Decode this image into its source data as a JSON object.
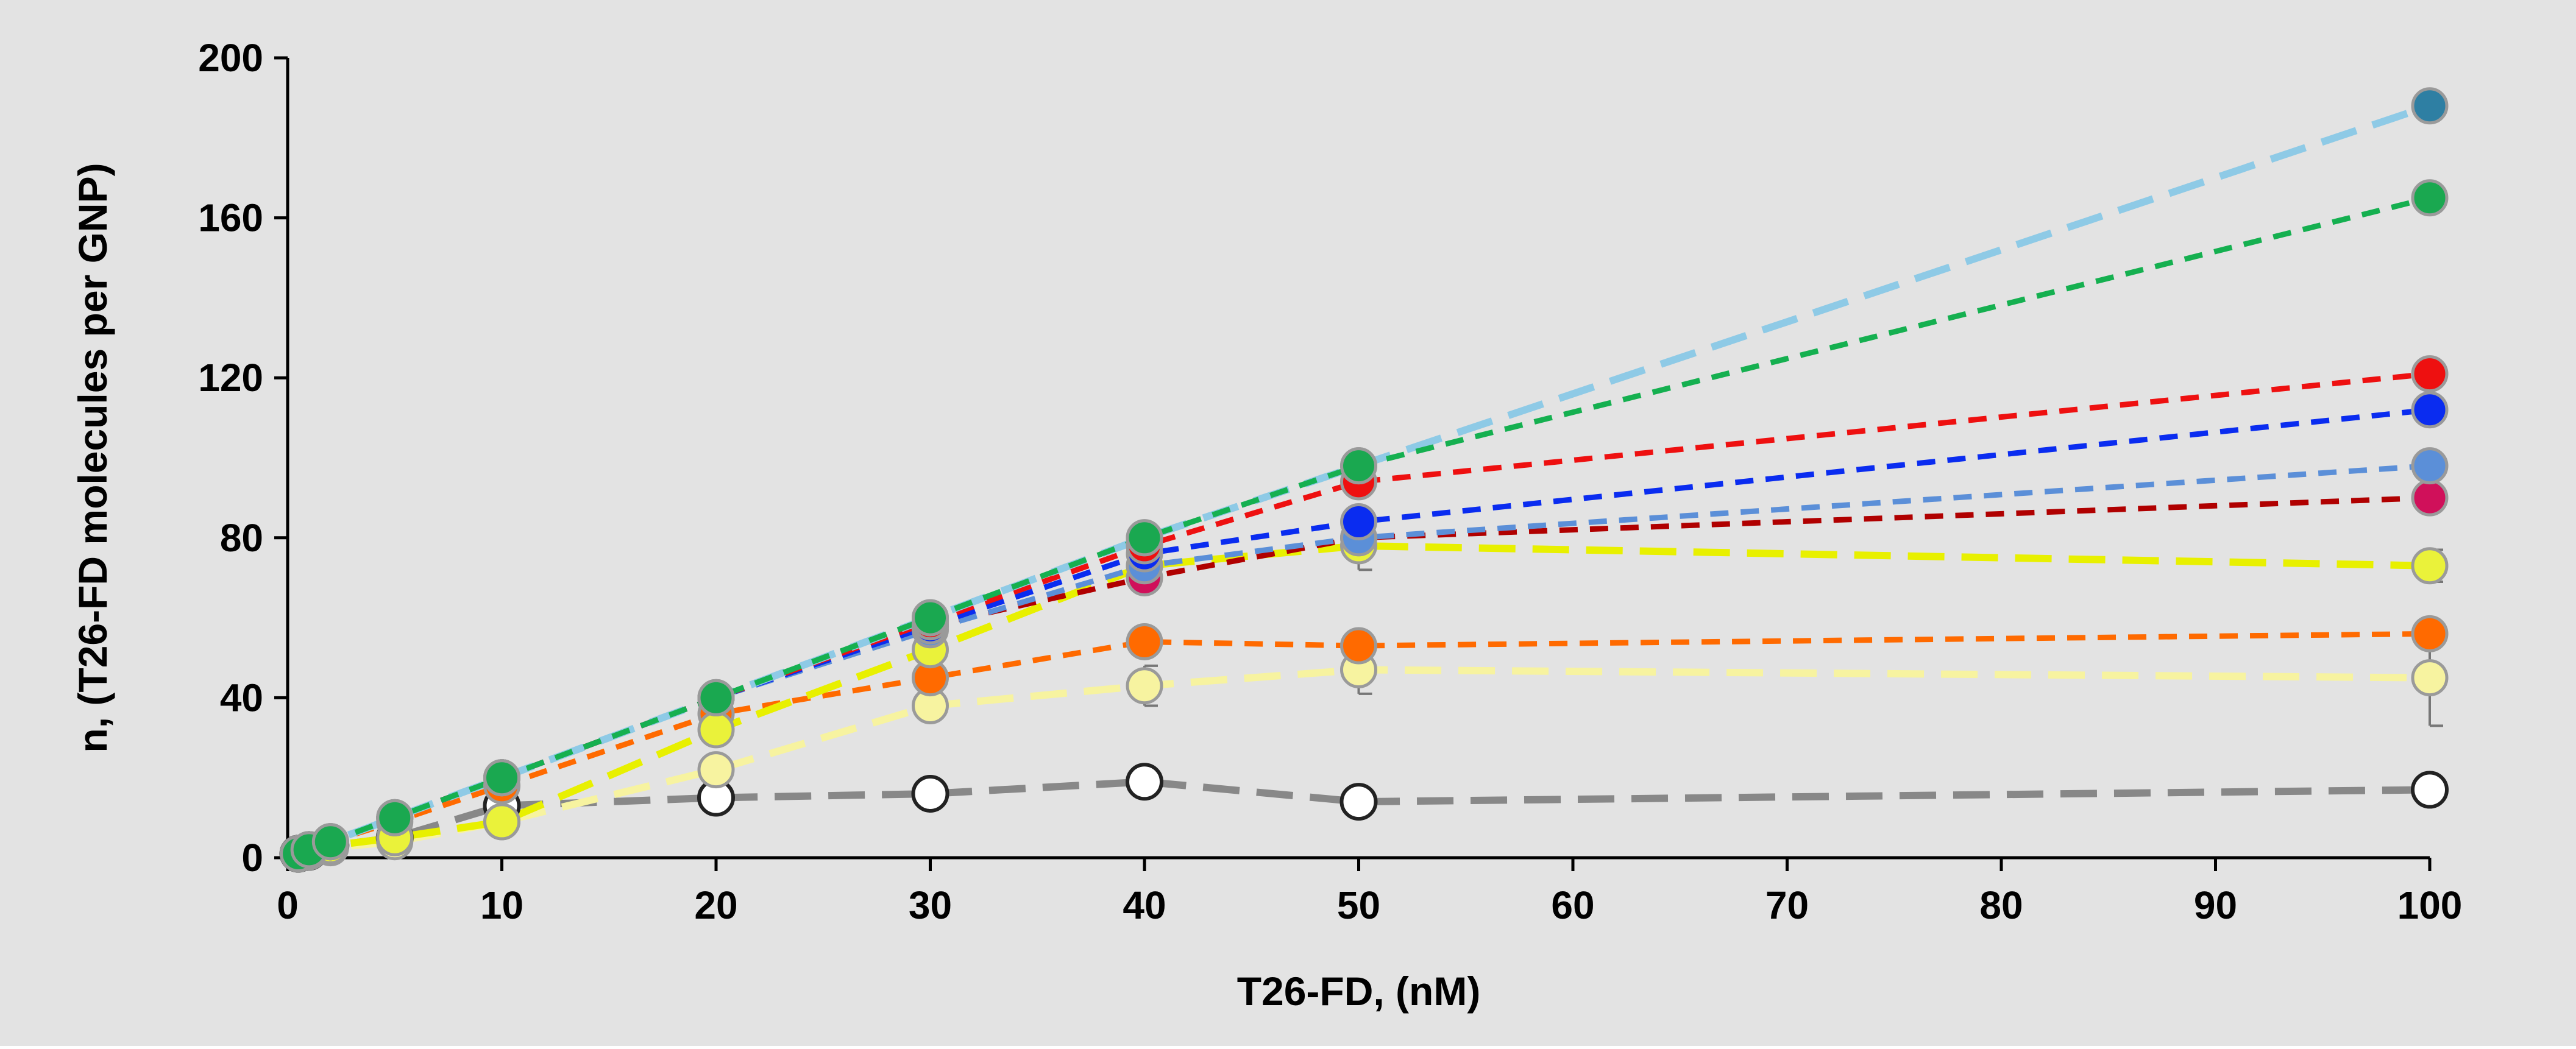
{
  "chart_data": {
    "type": "line",
    "title": "",
    "xlabel": "T26-FD, (nM)",
    "ylabel": "n,  (T26-FD molecules  per  GNP)",
    "xlim": [
      0,
      100
    ],
    "ylim": [
      0,
      200
    ],
    "x_ticks": [
      "0",
      "10",
      "20",
      "30",
      "40",
      "50",
      "60",
      "70",
      "80",
      "90",
      "100"
    ],
    "y_ticks": [
      "0",
      "40",
      "80",
      "120",
      "160",
      "200"
    ],
    "x_tick_values": [
      0,
      10,
      20,
      30,
      40,
      50,
      60,
      70,
      80,
      90,
      100
    ],
    "y_tick_values": [
      0,
      40,
      80,
      120,
      160,
      200
    ],
    "background": "#e3e3e3",
    "series": [
      {
        "name": "series-white",
        "line_color": "#888888",
        "marker_color": "#ffffff",
        "marker_edge": "#222222",
        "dash": "long",
        "points": [
          [
            0.5,
            1
          ],
          [
            1,
            1.5
          ],
          [
            2,
            3
          ],
          [
            5,
            5
          ],
          [
            10,
            13
          ],
          [
            20,
            15
          ],
          [
            30,
            16
          ],
          [
            40,
            19
          ],
          [
            50,
            14
          ],
          [
            100,
            17
          ]
        ]
      },
      {
        "name": "series-pale-yellow",
        "line_color": "#f7f3a0",
        "marker_color": "#f7f3a0",
        "marker_edge": "#9a9a9a",
        "dash": "long",
        "points": [
          [
            0.5,
            1
          ],
          [
            1,
            1.5
          ],
          [
            2,
            2.5
          ],
          [
            5,
            4
          ],
          [
            10,
            9
          ],
          [
            20,
            22
          ],
          [
            30,
            38
          ],
          [
            40,
            43
          ],
          [
            50,
            47
          ],
          [
            100,
            45
          ]
        ],
        "errors": [
          [
            40,
            5
          ],
          [
            50,
            6
          ],
          [
            100,
            12
          ]
        ]
      },
      {
        "name": "series-orange",
        "line_color": "#ff6a00",
        "marker_color": "#ff6a00",
        "marker_edge": "#9a9a9a",
        "dash": "short",
        "points": [
          [
            0.5,
            1
          ],
          [
            1,
            2
          ],
          [
            2,
            4
          ],
          [
            5,
            9
          ],
          [
            10,
            18
          ],
          [
            20,
            36
          ],
          [
            30,
            45
          ],
          [
            40,
            54
          ],
          [
            50,
            53
          ],
          [
            100,
            56
          ]
        ]
      },
      {
        "name": "series-yellow",
        "line_color": "#e8f000",
        "marker_color": "#eaf23a",
        "marker_edge": "#9a9a9a",
        "dash": "long",
        "points": [
          [
            0.5,
            1
          ],
          [
            1,
            1.5
          ],
          [
            2,
            3
          ],
          [
            5,
            5
          ],
          [
            10,
            9
          ],
          [
            20,
            32
          ],
          [
            30,
            52
          ],
          [
            40,
            73
          ],
          [
            50,
            78
          ],
          [
            100,
            73
          ]
        ],
        "errors": [
          [
            50,
            6
          ],
          [
            100,
            4
          ]
        ]
      },
      {
        "name": "series-dark-red",
        "line_color": "#b00000",
        "marker_color": "#d0105a",
        "marker_edge": "#9a9a9a",
        "dash": "short",
        "points": [
          [
            0.5,
            1
          ],
          [
            1,
            2
          ],
          [
            2,
            4
          ],
          [
            5,
            10
          ],
          [
            10,
            20
          ],
          [
            20,
            40
          ],
          [
            30,
            58
          ],
          [
            40,
            70
          ],
          [
            50,
            80
          ],
          [
            100,
            90
          ]
        ]
      },
      {
        "name": "series-light-blue",
        "line_color": "#5b8fd8",
        "marker_color": "#5b8fd8",
        "marker_edge": "#9a9a9a",
        "dash": "short",
        "points": [
          [
            0.5,
            1
          ],
          [
            1,
            2
          ],
          [
            2,
            4
          ],
          [
            5,
            10
          ],
          [
            10,
            20
          ],
          [
            20,
            40
          ],
          [
            30,
            57
          ],
          [
            40,
            73
          ],
          [
            50,
            80
          ],
          [
            100,
            98
          ]
        ]
      },
      {
        "name": "series-blue",
        "line_color": "#0a2cf0",
        "marker_color": "#0a2cf0",
        "marker_edge": "#9a9a9a",
        "dash": "short",
        "points": [
          [
            0.5,
            1
          ],
          [
            1,
            2
          ],
          [
            2,
            4
          ],
          [
            5,
            10
          ],
          [
            10,
            20
          ],
          [
            20,
            40
          ],
          [
            30,
            58
          ],
          [
            40,
            76
          ],
          [
            50,
            84
          ],
          [
            100,
            112
          ]
        ]
      },
      {
        "name": "series-red",
        "line_color": "#ee1010",
        "marker_color": "#ee1010",
        "marker_edge": "#9a9a9a",
        "dash": "short",
        "points": [
          [
            0.5,
            1
          ],
          [
            1,
            2
          ],
          [
            2,
            4
          ],
          [
            5,
            10
          ],
          [
            10,
            20
          ],
          [
            20,
            40
          ],
          [
            30,
            59
          ],
          [
            40,
            78
          ],
          [
            50,
            94
          ],
          [
            100,
            121
          ]
        ]
      },
      {
        "name": "series-teal",
        "line_color": "#8ecae6",
        "marker_color": "#2e7fa3",
        "marker_edge": "#9a9a9a",
        "dash": "long",
        "points": [
          [
            0.5,
            1
          ],
          [
            1,
            2
          ],
          [
            2,
            4
          ],
          [
            5,
            10
          ],
          [
            10,
            20
          ],
          [
            20,
            40
          ],
          [
            30,
            60
          ],
          [
            40,
            80
          ],
          [
            50,
            98
          ],
          [
            100,
            188
          ]
        ]
      },
      {
        "name": "series-green",
        "line_color": "#15b050",
        "marker_color": "#1aa850",
        "marker_edge": "#9a9a9a",
        "dash": "short",
        "points": [
          [
            0.5,
            1
          ],
          [
            1,
            2
          ],
          [
            2,
            4
          ],
          [
            5,
            10
          ],
          [
            10,
            20
          ],
          [
            20,
            40
          ],
          [
            30,
            60
          ],
          [
            40,
            80
          ],
          [
            50,
            98
          ],
          [
            100,
            165
          ]
        ]
      }
    ]
  }
}
